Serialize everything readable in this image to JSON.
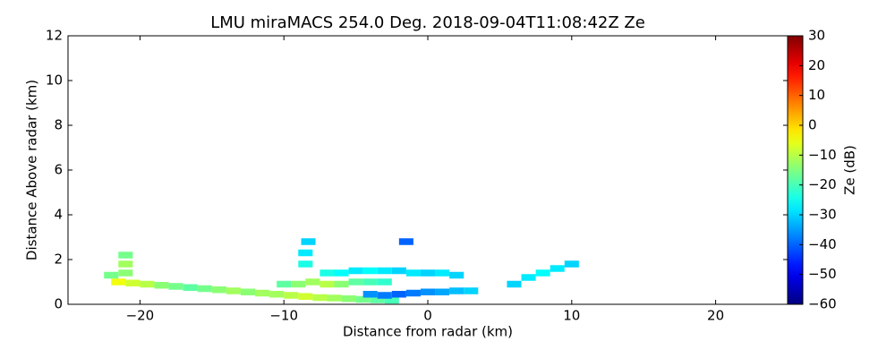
{
  "chart_data": {
    "type": "heatmap",
    "title": "LMU miraMACS 254.0 Deg. 2018-09-04T11:08:42Z  Ze",
    "xlabel": "Distance from radar (km)",
    "ylabel": "Distance Above radar  (km)",
    "xlim": [
      -25,
      25
    ],
    "xticks": [
      {
        "value": -20,
        "label": "−20"
      },
      {
        "value": -10,
        "label": "−10"
      },
      0,
      10,
      20
    ],
    "ylim": [
      0,
      12
    ],
    "yticks": [
      0,
      2,
      4,
      6,
      8,
      10,
      12
    ],
    "colormap": "jet",
    "colorbar": {
      "label": "Ze (dB)",
      "lim": [
        -60,
        30
      ],
      "ticks": [
        {
          "value": -60,
          "label": "−60"
        },
        {
          "value": -50,
          "label": "−50"
        },
        {
          "value": -40,
          "label": "−40"
        },
        {
          "value": -30,
          "label": "−30"
        },
        {
          "value": -20,
          "label": "−20"
        },
        {
          "value": -10,
          "label": "−10"
        },
        0,
        10,
        20,
        30
      ]
    },
    "x": [
      -21.5,
      -20.5,
      -19.5,
      -18.5,
      -17.5,
      -16.5,
      -15.5,
      -14.5,
      -13.5,
      -12.5,
      -11.5,
      -10.5,
      -9.5,
      -8.5,
      -7.5,
      -6.5,
      -5.5,
      -4.5,
      -3.5,
      -2.5,
      -21,
      -21,
      -21,
      -22,
      -10,
      -9,
      -8,
      -7,
      -6,
      -5,
      -4,
      -3,
      -7,
      -6,
      -5,
      -4,
      -3,
      -2,
      -1,
      0,
      1,
      2,
      -4,
      -3,
      -2,
      -1,
      0,
      1,
      2,
      3,
      -8.5,
      -8.5,
      -8.3,
      -1.5,
      6,
      7,
      8,
      9,
      10
    ],
    "y": [
      1.0,
      0.95,
      0.9,
      0.85,
      0.8,
      0.75,
      0.7,
      0.65,
      0.6,
      0.55,
      0.5,
      0.45,
      0.4,
      0.35,
      0.3,
      0.28,
      0.25,
      0.22,
      0.2,
      0.18,
      1.4,
      1.8,
      2.2,
      1.3,
      0.9,
      0.9,
      1.0,
      0.9,
      0.9,
      1.0,
      1.0,
      1.0,
      1.4,
      1.4,
      1.5,
      1.5,
      1.5,
      1.5,
      1.4,
      1.4,
      1.4,
      1.3,
      0.45,
      0.4,
      0.45,
      0.5,
      0.55,
      0.55,
      0.6,
      0.6,
      1.8,
      2.3,
      2.8,
      2.8,
      0.9,
      1.2,
      1.4,
      1.6,
      1.8
    ],
    "values": [
      -5,
      -8,
      -10,
      -14,
      -16,
      -18,
      -16,
      -14,
      -12,
      -14,
      -12,
      -12,
      -10,
      -8,
      -10,
      -12,
      -14,
      -16,
      -18,
      -20,
      -14,
      -12,
      -16,
      -16,
      -18,
      -14,
      -12,
      -10,
      -14,
      -18,
      -20,
      -22,
      -24,
      -26,
      -28,
      -26,
      -28,
      -30,
      -28,
      -30,
      -28,
      -30,
      -36,
      -38,
      -40,
      -38,
      -36,
      -34,
      -32,
      -30,
      -24,
      -28,
      -30,
      -40,
      -30,
      -28,
      -26,
      -28,
      -30
    ]
  }
}
